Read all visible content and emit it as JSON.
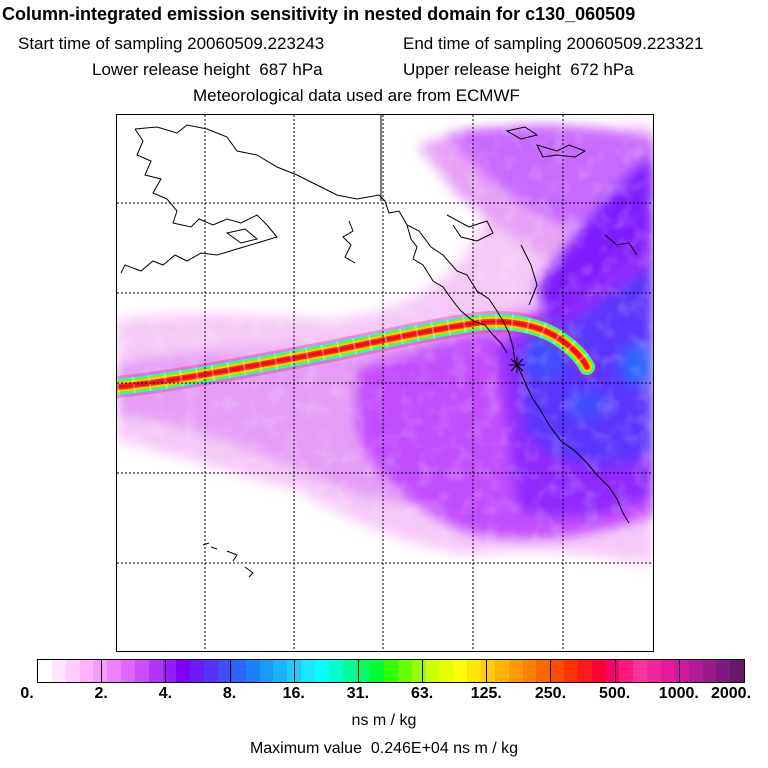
{
  "title": "Column-integrated emission sensitivity in nested domain for c130_060509",
  "sampling": {
    "start_label": "Start time of sampling",
    "start_value": "20060509.223243",
    "end_label": "End time of sampling",
    "end_value": "20060509.223321"
  },
  "release": {
    "lower_label": "Lower release height",
    "lower_value": "687 hPa",
    "upper_label": "Upper release height",
    "upper_value": "672 hPa"
  },
  "met_note": "Meteorological data used are from ECMWF",
  "colorbar": {
    "tick_labels": [
      "0.",
      "2.",
      "4.",
      "8.",
      "16.",
      "31.",
      "63.",
      "125.",
      "250.",
      "500.",
      "1000.",
      "2000."
    ],
    "colors": [
      "#ffffff",
      "#ffe6ff",
      "#ffccff",
      "#ffb3ff",
      "#f799ff",
      "#ee80ff",
      "#e066ff",
      "#cc4dff",
      "#b333ff",
      "#9a1aff",
      "#8000ff",
      "#6a1aff",
      "#5533ff",
      "#3f4dff",
      "#2a66ff",
      "#1a80ff",
      "#1a99ff",
      "#1ab3ff",
      "#1acdff",
      "#1ae6ff",
      "#00ffff",
      "#00ffcc",
      "#00ff99",
      "#00ff66",
      "#00ff33",
      "#33ff00",
      "#66ff00",
      "#99ff00",
      "#ccff00",
      "#e6ff00",
      "#ffff00",
      "#ffe600",
      "#ffcc00",
      "#ffb300",
      "#ff9900",
      "#ff8000",
      "#ff6600",
      "#ff4d00",
      "#ff3300",
      "#ff1a1a",
      "#ff0033",
      "#ff0066",
      "#ff1a80",
      "#ff3399",
      "#f0289b",
      "#e6199e",
      "#cc1aa0",
      "#b31a99",
      "#991a8c",
      "#801a80",
      "#661a66"
    ],
    "units": "ns m / kg"
  },
  "max_label": "Maximum value",
  "max_value": "0.246E+04 ns m / kg"
}
